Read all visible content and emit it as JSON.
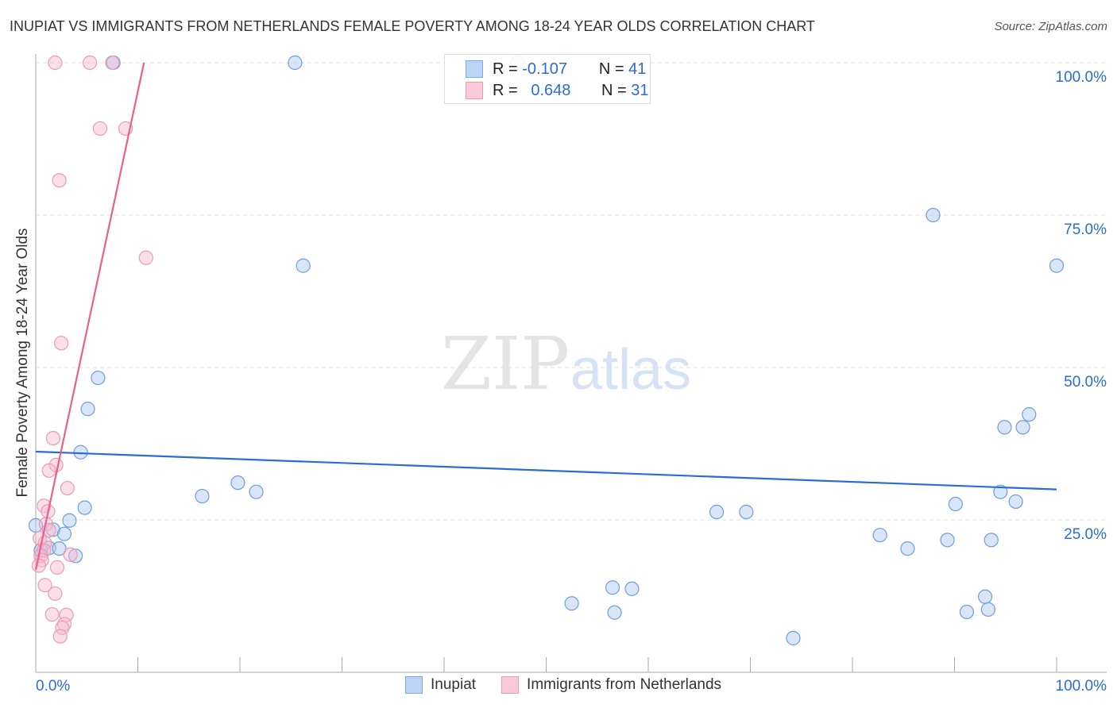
{
  "title": "INUPIAT VS IMMIGRANTS FROM NETHERLANDS FEMALE POVERTY AMONG 18-24 YEAR OLDS CORRELATION CHART",
  "source": "Source: ZipAtlas.com",
  "watermark": "ZIPatlas",
  "colors": {
    "blue": "#2a6cd6",
    "blue_fill": "#a9c7f0",
    "pink": "#e8608f",
    "pink_fill": "#f6b8cb"
  },
  "legend": {
    "rows": [
      {
        "r_label": "R =",
        "r": "-0.107",
        "n_label": "N =",
        "n": "41"
      },
      {
        "r_label": "R =",
        "r": "0.648",
        "n_label": "N =",
        "n": "31"
      }
    ]
  },
  "chart_data": {
    "type": "scatter",
    "title": "INUPIAT VS IMMIGRANTS FROM NETHERLANDS FEMALE POVERTY AMONG 18-24 YEAR OLDS CORRELATION CHART",
    "xlabel": "",
    "ylabel": "Female Poverty Among 18-24 Year Olds",
    "xlim": [
      0,
      100
    ],
    "ylim": [
      0,
      100
    ],
    "x_tick_labels": [
      "0.0%",
      "100.0%"
    ],
    "y_tick_labels": [
      {
        "v": 100,
        "label": "100.0%"
      },
      {
        "v": 75,
        "label": "75.0%"
      },
      {
        "v": 50,
        "label": "50.0%"
      },
      {
        "v": 25,
        "label": "25.0%"
      }
    ],
    "series": [
      {
        "name": "Inupiat",
        "trend": [
          [
            0,
            36.2
          ],
          [
            100,
            30.0
          ]
        ],
        "points": [
          [
            0,
            24.1
          ],
          [
            0.5,
            20
          ],
          [
            1.3,
            20.4
          ],
          [
            1.7,
            23.4
          ],
          [
            2.3,
            20.3
          ],
          [
            2.8,
            22.7
          ],
          [
            3.3,
            24.9
          ],
          [
            3.9,
            19.1
          ],
          [
            4.4,
            36.1
          ],
          [
            4.8,
            27
          ],
          [
            5.1,
            43.2
          ],
          [
            6.1,
            48.3
          ],
          [
            7.6,
            100
          ],
          [
            16.3,
            28.9
          ],
          [
            19.8,
            31.1
          ],
          [
            21.6,
            29.6
          ],
          [
            25.4,
            100
          ],
          [
            26.2,
            66.7
          ],
          [
            47.2,
            100
          ],
          [
            52.5,
            11.3
          ],
          [
            56.5,
            13.9
          ],
          [
            56.7,
            9.8
          ],
          [
            58.4,
            13.7
          ],
          [
            66.7,
            26.3
          ],
          [
            69.6,
            26.3
          ],
          [
            74.2,
            5.6
          ],
          [
            82.7,
            22.5
          ],
          [
            85.4,
            20.3
          ],
          [
            87.9,
            75
          ],
          [
            89.3,
            21.7
          ],
          [
            90.1,
            27.6
          ],
          [
            91.2,
            9.9
          ],
          [
            93,
            12.4
          ],
          [
            93.3,
            10.3
          ],
          [
            93.6,
            21.7
          ],
          [
            94.9,
            40.2
          ],
          [
            94.5,
            29.6
          ],
          [
            96,
            28
          ],
          [
            96.7,
            40.2
          ],
          [
            97.3,
            42.3
          ],
          [
            100,
            66.7
          ]
        ]
      },
      {
        "name": "Immigrants from Netherlands",
        "trend": [
          [
            0,
            16.8
          ],
          [
            10.6,
            100
          ]
        ],
        "points": [
          [
            1.9,
            100
          ],
          [
            5.3,
            100
          ],
          [
            7.5,
            100
          ],
          [
            6.3,
            89.2
          ],
          [
            8.8,
            89.2
          ],
          [
            2.3,
            80.7
          ],
          [
            10.8,
            68
          ],
          [
            2.5,
            54
          ],
          [
            1.7,
            38.4
          ],
          [
            2,
            34
          ],
          [
            1.3,
            33.1
          ],
          [
            3.1,
            30.2
          ],
          [
            0.8,
            27.3
          ],
          [
            1.2,
            26.4
          ],
          [
            1,
            24.3
          ],
          [
            1.3,
            23.3
          ],
          [
            0.4,
            22
          ],
          [
            0.9,
            21.2
          ],
          [
            0.8,
            20
          ],
          [
            0.5,
            19.1
          ],
          [
            3.4,
            19.3
          ],
          [
            0.6,
            18.4
          ],
          [
            2.1,
            17.2
          ],
          [
            0.3,
            17.5
          ],
          [
            0.9,
            14.3
          ],
          [
            1.9,
            12.9
          ],
          [
            1.6,
            9.5
          ],
          [
            3,
            9.4
          ],
          [
            2.8,
            7.9
          ],
          [
            2.6,
            7.3
          ],
          [
            2.4,
            5.9
          ]
        ]
      }
    ]
  }
}
